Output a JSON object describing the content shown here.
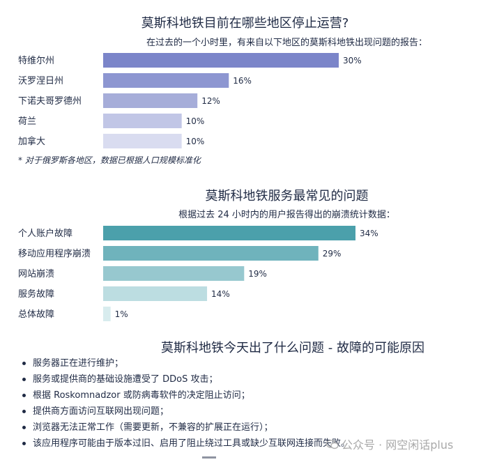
{
  "chart1": {
    "title": "莫斯科地铁目前在哪些地区停止运营?",
    "subtitle": "在过去的一个小时里，有来自以下地区的莫斯科地铁出现问题的报告：",
    "note": "* 对于俄罗斯各地区，数据已根据人口规模标准化",
    "colors": [
      "#7b85c9",
      "#8d96d1",
      "#a6add9",
      "#c1c6e6",
      "#d9dcf0"
    ]
  },
  "chart2": {
    "title": "莫斯科地铁服务最常见的问题",
    "subtitle": "根据过去 24 小时内的用户报告得出的崩溃统计数据：",
    "colors": [
      "#4ba0ab",
      "#6fb3bc",
      "#97c8cf",
      "#bcdde1",
      "#d8ecee"
    ]
  },
  "chart_data": [
    {
      "type": "bar",
      "orientation": "horizontal",
      "title": "莫斯科地铁目前在哪些地区停止运营?",
      "subtitle": "在过去的一个小时里，有来自以下地区的莫斯科地铁出现问题的报告：",
      "categories": [
        "特维尔州",
        "沃罗涅日州",
        "下诺夫哥罗德州",
        "荷兰",
        "加拿大"
      ],
      "values": [
        30,
        16,
        12,
        10,
        10
      ],
      "value_labels": [
        "30%",
        "16%",
        "12%",
        "10%",
        "10%"
      ],
      "unit": "%",
      "xlim": [
        0,
        30
      ]
    },
    {
      "type": "bar",
      "orientation": "horizontal",
      "title": "莫斯科地铁服务最常见的问题",
      "subtitle": "根据过去 24 小时内的用户报告得出的崩溃统计数据：",
      "categories": [
        "个人账户故障",
        "移动应用程序崩溃",
        "网站崩溃",
        "服务故障",
        "总体故障"
      ],
      "values": [
        34,
        29,
        19,
        14,
        1
      ],
      "value_labels": [
        "34%",
        "29%",
        "19%",
        "14%",
        "1%"
      ],
      "unit": "%",
      "xlim": [
        0,
        34
      ]
    }
  ],
  "causes": {
    "title": "莫斯科地铁今天出了什么问题 - 故障的可能原因",
    "items": [
      "服务器正在进行维护；",
      "服务或提供商的基础设施遭受了 DDoS 攻击；",
      "根据 Roskomnadzor 或防病毒软件的决定阻止访问；",
      "提供商方面访问互联网出现问题；",
      "浏览器无法正常工作（需要更新，不兼容的扩展正在运行）；",
      "该应用程序可能由于版本过旧、启用了阻止绕过工具或缺少互联网连接而失败。"
    ]
  },
  "watermark": {
    "text": "公众号 · 网空闲话plus",
    "icon": "wechat-icon"
  }
}
